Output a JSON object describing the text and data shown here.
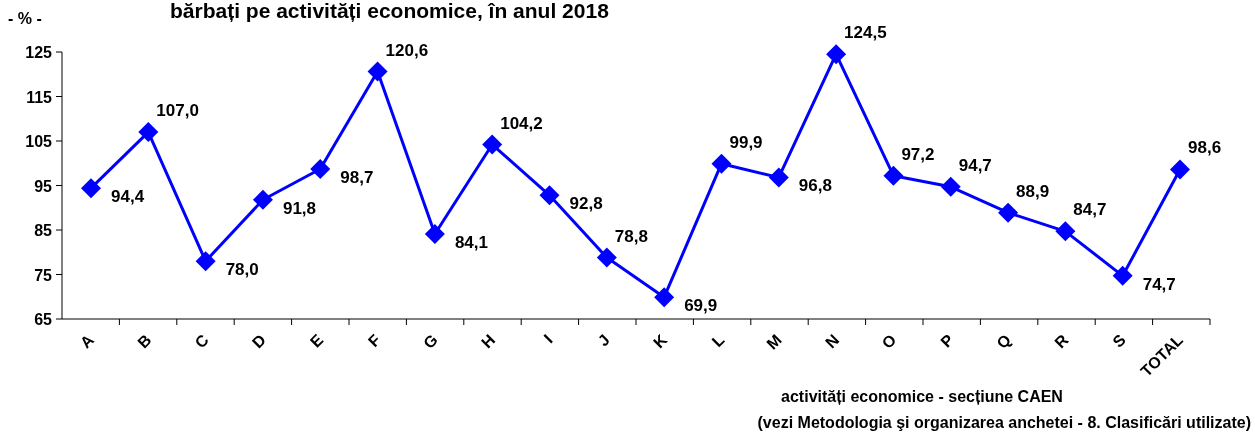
{
  "chart_data": {
    "type": "line",
    "title": "bărbați pe activități economice, în anul 2018",
    "ylabel": "- % -",
    "xlabel": "activități economice - secțiune CAEN",
    "annotations": [
      "(vezi Metodologia şi organizarea anchetei - 8. Clasificări utilizate)"
    ],
    "categories": [
      "A",
      "B",
      "C",
      "D",
      "E",
      "F",
      "G",
      "H",
      "I",
      "J",
      "K",
      "L",
      "M",
      "N",
      "O",
      "P",
      "Q",
      "R",
      "S",
      "TOTAL"
    ],
    "series": [
      {
        "color": "#0000ff",
        "values": [
          94.4,
          107.0,
          78.0,
          91.8,
          98.7,
          120.6,
          84.1,
          104.2,
          92.8,
          78.8,
          69.9,
          99.9,
          96.8,
          124.5,
          97.2,
          94.7,
          88.9,
          84.7,
          74.7,
          98.6
        ],
        "value_labels": [
          "94,4",
          "107,0",
          "78,0",
          "91,8",
          "98,7",
          "120,6",
          "84,1",
          "104,2",
          "92,8",
          "78,8",
          "69,9",
          "99,9",
          "96,8",
          "124,5",
          "97,2",
          "94,7",
          "88,9",
          "84,7",
          "74,7",
          "98,6"
        ]
      }
    ],
    "ylim": [
      65,
      125
    ],
    "yticks": [
      65,
      75,
      85,
      95,
      105,
      115,
      125
    ],
    "grid": false,
    "marker": "diamond",
    "line_style": "solid"
  }
}
